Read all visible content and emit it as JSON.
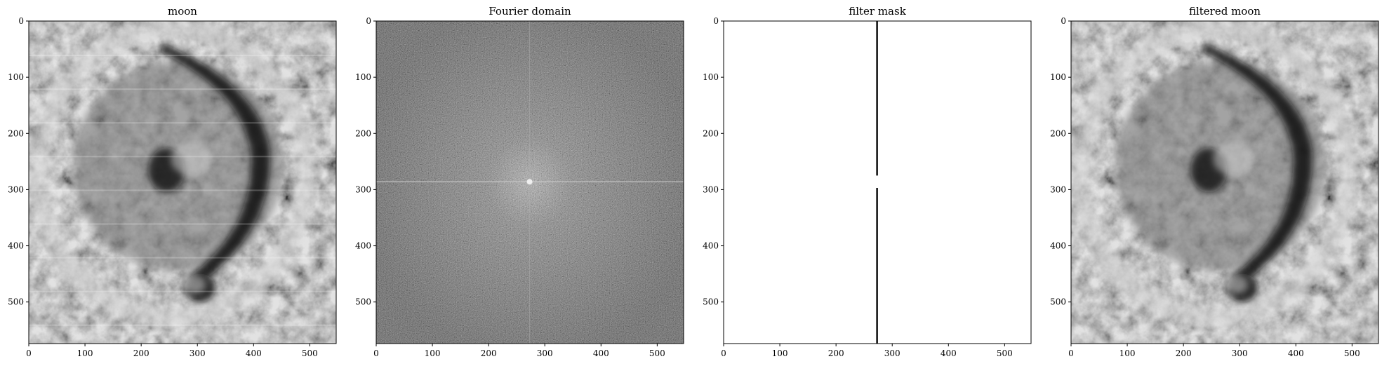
{
  "figure": {
    "panels": [
      {
        "id": "moon",
        "title": "moon",
        "kind": "moon"
      },
      {
        "id": "fourier",
        "title": "Fourier domain",
        "kind": "fourier"
      },
      {
        "id": "mask",
        "title": "filter mask",
        "kind": "mask"
      },
      {
        "id": "filtered",
        "title": "filtered moon",
        "kind": "filtered"
      }
    ],
    "x_ticks": [
      0,
      100,
      200,
      300,
      400,
      500
    ],
    "y_ticks": [
      0,
      100,
      200,
      300,
      400,
      500
    ],
    "x_range": [
      0,
      547
    ],
    "y_range": [
      0,
      574
    ],
    "mask": {
      "column": 273,
      "gap": [
        275,
        297
      ]
    }
  }
}
